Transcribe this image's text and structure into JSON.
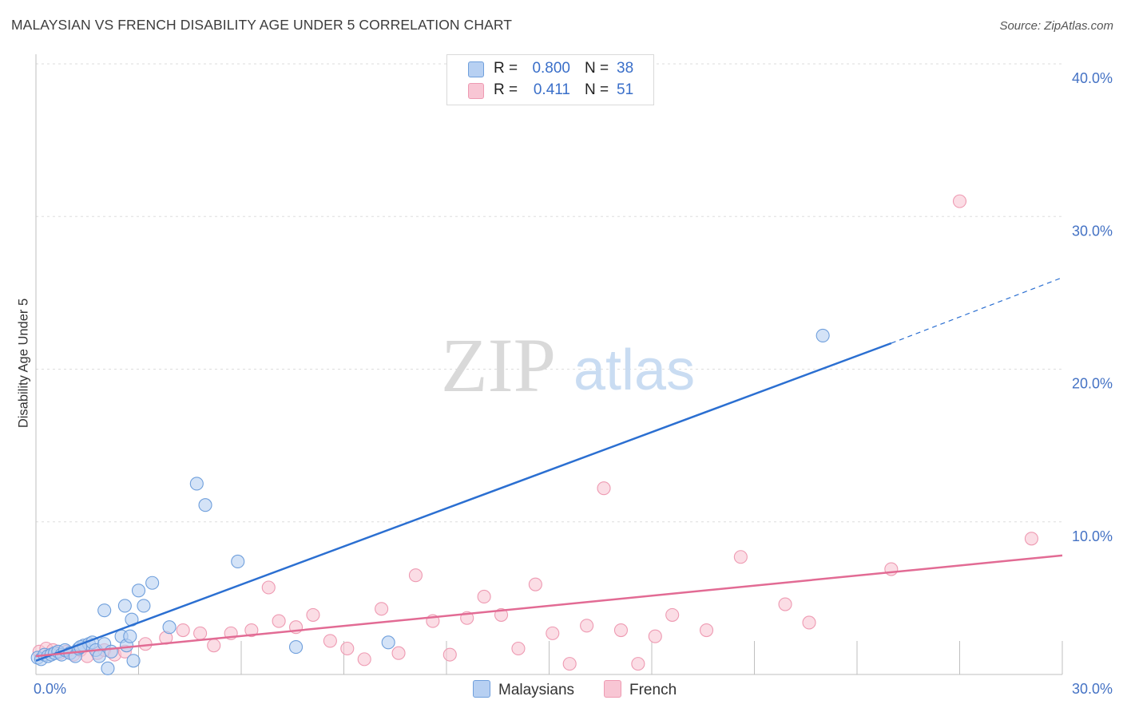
{
  "title": "MALAYSIAN VS FRENCH DISABILITY AGE UNDER 5 CORRELATION CHART",
  "source": "Source: ZipAtlas.com",
  "watermark": {
    "zip": "ZIP",
    "atlas": "atlas"
  },
  "legend_top": {
    "rows": [
      {
        "r_label": "R =",
        "r_value": "0.800",
        "n_label": "N =",
        "n_value": "38"
      },
      {
        "r_label": "R =",
        "r_value": "0.411",
        "n_label": "N =",
        "n_value": "51"
      }
    ]
  },
  "legend_bottom": {
    "items": [
      {
        "label": "Malaysians"
      },
      {
        "label": "French"
      }
    ]
  },
  "colors": {
    "malaysians_fill": "#b7d0f2",
    "malaysians_stroke": "#6f9fdc",
    "malaysians_line": "#2b6fd1",
    "french_fill": "#f8c6d4",
    "french_stroke": "#ee9ab2",
    "french_line": "#e26b94",
    "tick": "#4472c4",
    "grid": "#dddddd"
  },
  "chart_data": {
    "type": "scatter",
    "title": "MALAYSIAN VS FRENCH DISABILITY AGE UNDER 5 CORRELATION CHART",
    "xlabel": "",
    "ylabel": "Disability Age Under 5",
    "xlim": [
      0,
      30
    ],
    "ylim": [
      0,
      40
    ],
    "x_ticks": [
      "0.0%",
      "30.0%"
    ],
    "y_ticks": [
      {
        "value": 10,
        "label": "10.0%"
      },
      {
        "value": 20,
        "label": "20.0%"
      },
      {
        "value": 30,
        "label": "30.0%"
      },
      {
        "value": 40,
        "label": "40.0%"
      }
    ],
    "grid": true,
    "legend_position": "bottom",
    "series": [
      {
        "name": "Malaysians",
        "r": 0.8,
        "n": 38,
        "points": [
          [
            0.05,
            1.1
          ],
          [
            0.15,
            1.0
          ],
          [
            0.25,
            1.3
          ],
          [
            0.35,
            1.2
          ],
          [
            0.45,
            1.3
          ],
          [
            0.55,
            1.4
          ],
          [
            0.65,
            1.5
          ],
          [
            0.75,
            1.3
          ],
          [
            0.85,
            1.6
          ],
          [
            1.0,
            1.4
          ],
          [
            1.15,
            1.2
          ],
          [
            1.25,
            1.7
          ],
          [
            1.4,
            1.9
          ],
          [
            1.55,
            2.0
          ],
          [
            1.65,
            2.1
          ],
          [
            1.75,
            1.6
          ],
          [
            2.0,
            2.0
          ],
          [
            2.2,
            1.5
          ],
          [
            2.5,
            2.5
          ],
          [
            2.65,
            1.9
          ],
          [
            2.75,
            2.5
          ],
          [
            2.85,
            0.9
          ],
          [
            2.1,
            0.4
          ],
          [
            2.8,
            3.6
          ],
          [
            3.0,
            5.5
          ],
          [
            3.4,
            6.0
          ],
          [
            3.15,
            4.5
          ],
          [
            2.6,
            4.5
          ],
          [
            2.0,
            4.2
          ],
          [
            3.9,
            3.1
          ],
          [
            4.7,
            12.5
          ],
          [
            4.95,
            11.1
          ],
          [
            5.9,
            7.4
          ],
          [
            7.6,
            1.8
          ],
          [
            10.3,
            2.1
          ],
          [
            23.0,
            22.2
          ],
          [
            1.85,
            1.2
          ],
          [
            1.3,
            1.8
          ]
        ]
      },
      {
        "name": "French",
        "r": 0.411,
        "n": 51,
        "points": [
          [
            0.1,
            1.5
          ],
          [
            0.3,
            1.7
          ],
          [
            0.5,
            1.6
          ],
          [
            0.7,
            1.4
          ],
          [
            0.9,
            1.5
          ],
          [
            1.1,
            1.3
          ],
          [
            1.3,
            1.6
          ],
          [
            1.5,
            1.2
          ],
          [
            1.8,
            1.4
          ],
          [
            2.0,
            1.6
          ],
          [
            2.3,
            1.3
          ],
          [
            2.6,
            1.5
          ],
          [
            3.2,
            2.0
          ],
          [
            3.8,
            2.4
          ],
          [
            4.3,
            2.9
          ],
          [
            4.8,
            2.7
          ],
          [
            5.2,
            1.9
          ],
          [
            5.7,
            2.7
          ],
          [
            6.3,
            2.9
          ],
          [
            6.8,
            5.7
          ],
          [
            7.1,
            3.5
          ],
          [
            7.6,
            3.1
          ],
          [
            8.1,
            3.9
          ],
          [
            8.6,
            2.2
          ],
          [
            9.1,
            1.7
          ],
          [
            9.6,
            1.0
          ],
          [
            10.1,
            4.3
          ],
          [
            10.6,
            1.4
          ],
          [
            11.1,
            6.5
          ],
          [
            11.6,
            3.5
          ],
          [
            12.1,
            1.3
          ],
          [
            12.6,
            3.7
          ],
          [
            13.1,
            5.1
          ],
          [
            13.6,
            3.9
          ],
          [
            14.1,
            1.7
          ],
          [
            14.6,
            5.9
          ],
          [
            15.1,
            2.7
          ],
          [
            15.6,
            0.7
          ],
          [
            16.1,
            3.2
          ],
          [
            16.6,
            12.2
          ],
          [
            17.1,
            2.9
          ],
          [
            17.6,
            0.7
          ],
          [
            18.1,
            2.5
          ],
          [
            18.6,
            3.9
          ],
          [
            19.6,
            2.9
          ],
          [
            20.6,
            7.7
          ],
          [
            21.9,
            4.6
          ],
          [
            22.6,
            3.4
          ],
          [
            25.0,
            6.9
          ],
          [
            27.0,
            31.0
          ],
          [
            29.1,
            8.9
          ]
        ]
      }
    ],
    "trend_lines": [
      {
        "series": "Malaysians",
        "solid": [
          [
            0,
            0.9
          ],
          [
            25,
            21.7
          ]
        ],
        "dashed": [
          [
            25,
            21.7
          ],
          [
            30,
            26.0
          ]
        ]
      },
      {
        "series": "French",
        "solid": [
          [
            0,
            1.2
          ],
          [
            30,
            7.8
          ]
        ]
      }
    ]
  }
}
